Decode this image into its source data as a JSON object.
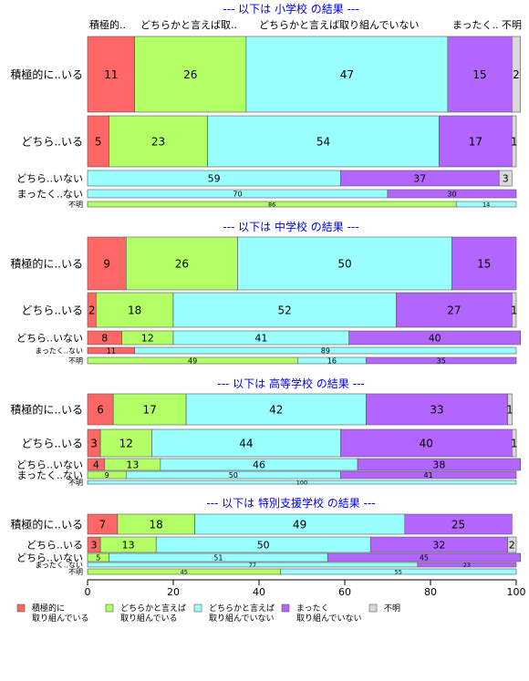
{
  "chart_data": {
    "type": "bar",
    "orientation": "horizontal",
    "stacked": "percent",
    "xlim": [
      0,
      100
    ],
    "x_ticks": [
      0,
      20,
      40,
      60,
      80,
      100
    ],
    "colors": {
      "積極的に取り組んでいる": "#ff6666",
      "どちらかと言えば取り組んでいる": "#b3ff66",
      "どちらかと言えば取り組んでいない": "#99ffff",
      "まったく取り組んでいない": "#b266ff",
      "不明": "#d9d9d9"
    },
    "column_labels": [
      "積極的..",
      "どちらかと言えば取..",
      "どちらかと言えば取り組んでいない",
      "まったく..",
      "不明"
    ],
    "legend": [
      {
        "key": "積極的に取り組んでいる",
        "lines": [
          "積極的に",
          "取り組んでいる"
        ]
      },
      {
        "key": "どちらかと言えば取り組んでいる",
        "lines": [
          "どちらかと言えば",
          "取り組んでいる"
        ]
      },
      {
        "key": "どちらかと言えば取り組んでいない",
        "lines": [
          "どちらかと言えば",
          "取り組んでいない"
        ]
      },
      {
        "key": "まったく取り組んでいない",
        "lines": [
          "まったく",
          "取り組んでいない"
        ]
      },
      {
        "key": "不明",
        "lines": [
          "不明"
        ]
      }
    ],
    "panels": [
      {
        "title": "--- 以下は 小学校 の結果 ---",
        "rows": [
          {
            "label": "積極的に..いる",
            "values": [
              11,
              26,
              47,
              15,
              2
            ]
          },
          {
            "label": "どちら..いる",
            "values": [
              5,
              23,
              54,
              17,
              1
            ]
          },
          {
            "label": "どちら..いない",
            "values": [
              0,
              0,
              59,
              37,
              3
            ]
          },
          {
            "label": "まったく..ない",
            "values": [
              0,
              0,
              70,
              30,
              0
            ]
          },
          {
            "label": "不明",
            "values": [
              0,
              86,
              14,
              0,
              0
            ]
          }
        ]
      },
      {
        "title": "--- 以下は 中学校 の結果 ---",
        "rows": [
          {
            "label": "積極的に..いる",
            "values": [
              9,
              26,
              50,
              15,
              0
            ]
          },
          {
            "label": "どちら..いる",
            "values": [
              2,
              18,
              52,
              27,
              1
            ]
          },
          {
            "label": "どちら..いない",
            "values": [
              8,
              12,
              41,
              40,
              0
            ]
          },
          {
            "label": "まったく..ない",
            "values": [
              11,
              0,
              89,
              0,
              0
            ]
          },
          {
            "label": "不明",
            "values": [
              0,
              49,
              16,
              35,
              0
            ]
          }
        ]
      },
      {
        "title": "--- 以下は 高等学校 の結果 ---",
        "rows": [
          {
            "label": "積極的に..いる",
            "values": [
              6,
              17,
              42,
              33,
              1
            ]
          },
          {
            "label": "どちら..いる",
            "values": [
              3,
              12,
              44,
              40,
              1
            ]
          },
          {
            "label": "どちら..いない",
            "values": [
              4,
              13,
              46,
              38,
              0
            ]
          },
          {
            "label": "まったく..ない",
            "values": [
              0,
              9,
              50,
              41,
              0
            ]
          },
          {
            "label": "不明",
            "values": [
              0,
              0,
              100,
              0,
              0
            ]
          }
        ]
      },
      {
        "title": "--- 以下は 特別支援学校 の結果 ---",
        "rows": [
          {
            "label": "積極的に..いる",
            "values": [
              7,
              18,
              49,
              25,
              0
            ]
          },
          {
            "label": "どちら..いる",
            "values": [
              3,
              13,
              50,
              32,
              2
            ]
          },
          {
            "label": "どちら..いない",
            "values": [
              0,
              5,
              51,
              45,
              0
            ]
          },
          {
            "label": "まったく..ない",
            "values": [
              0,
              0,
              77,
              23,
              0
            ]
          },
          {
            "label": "不明",
            "values": [
              0,
              45,
              55,
              0,
              0
            ]
          }
        ]
      }
    ]
  }
}
